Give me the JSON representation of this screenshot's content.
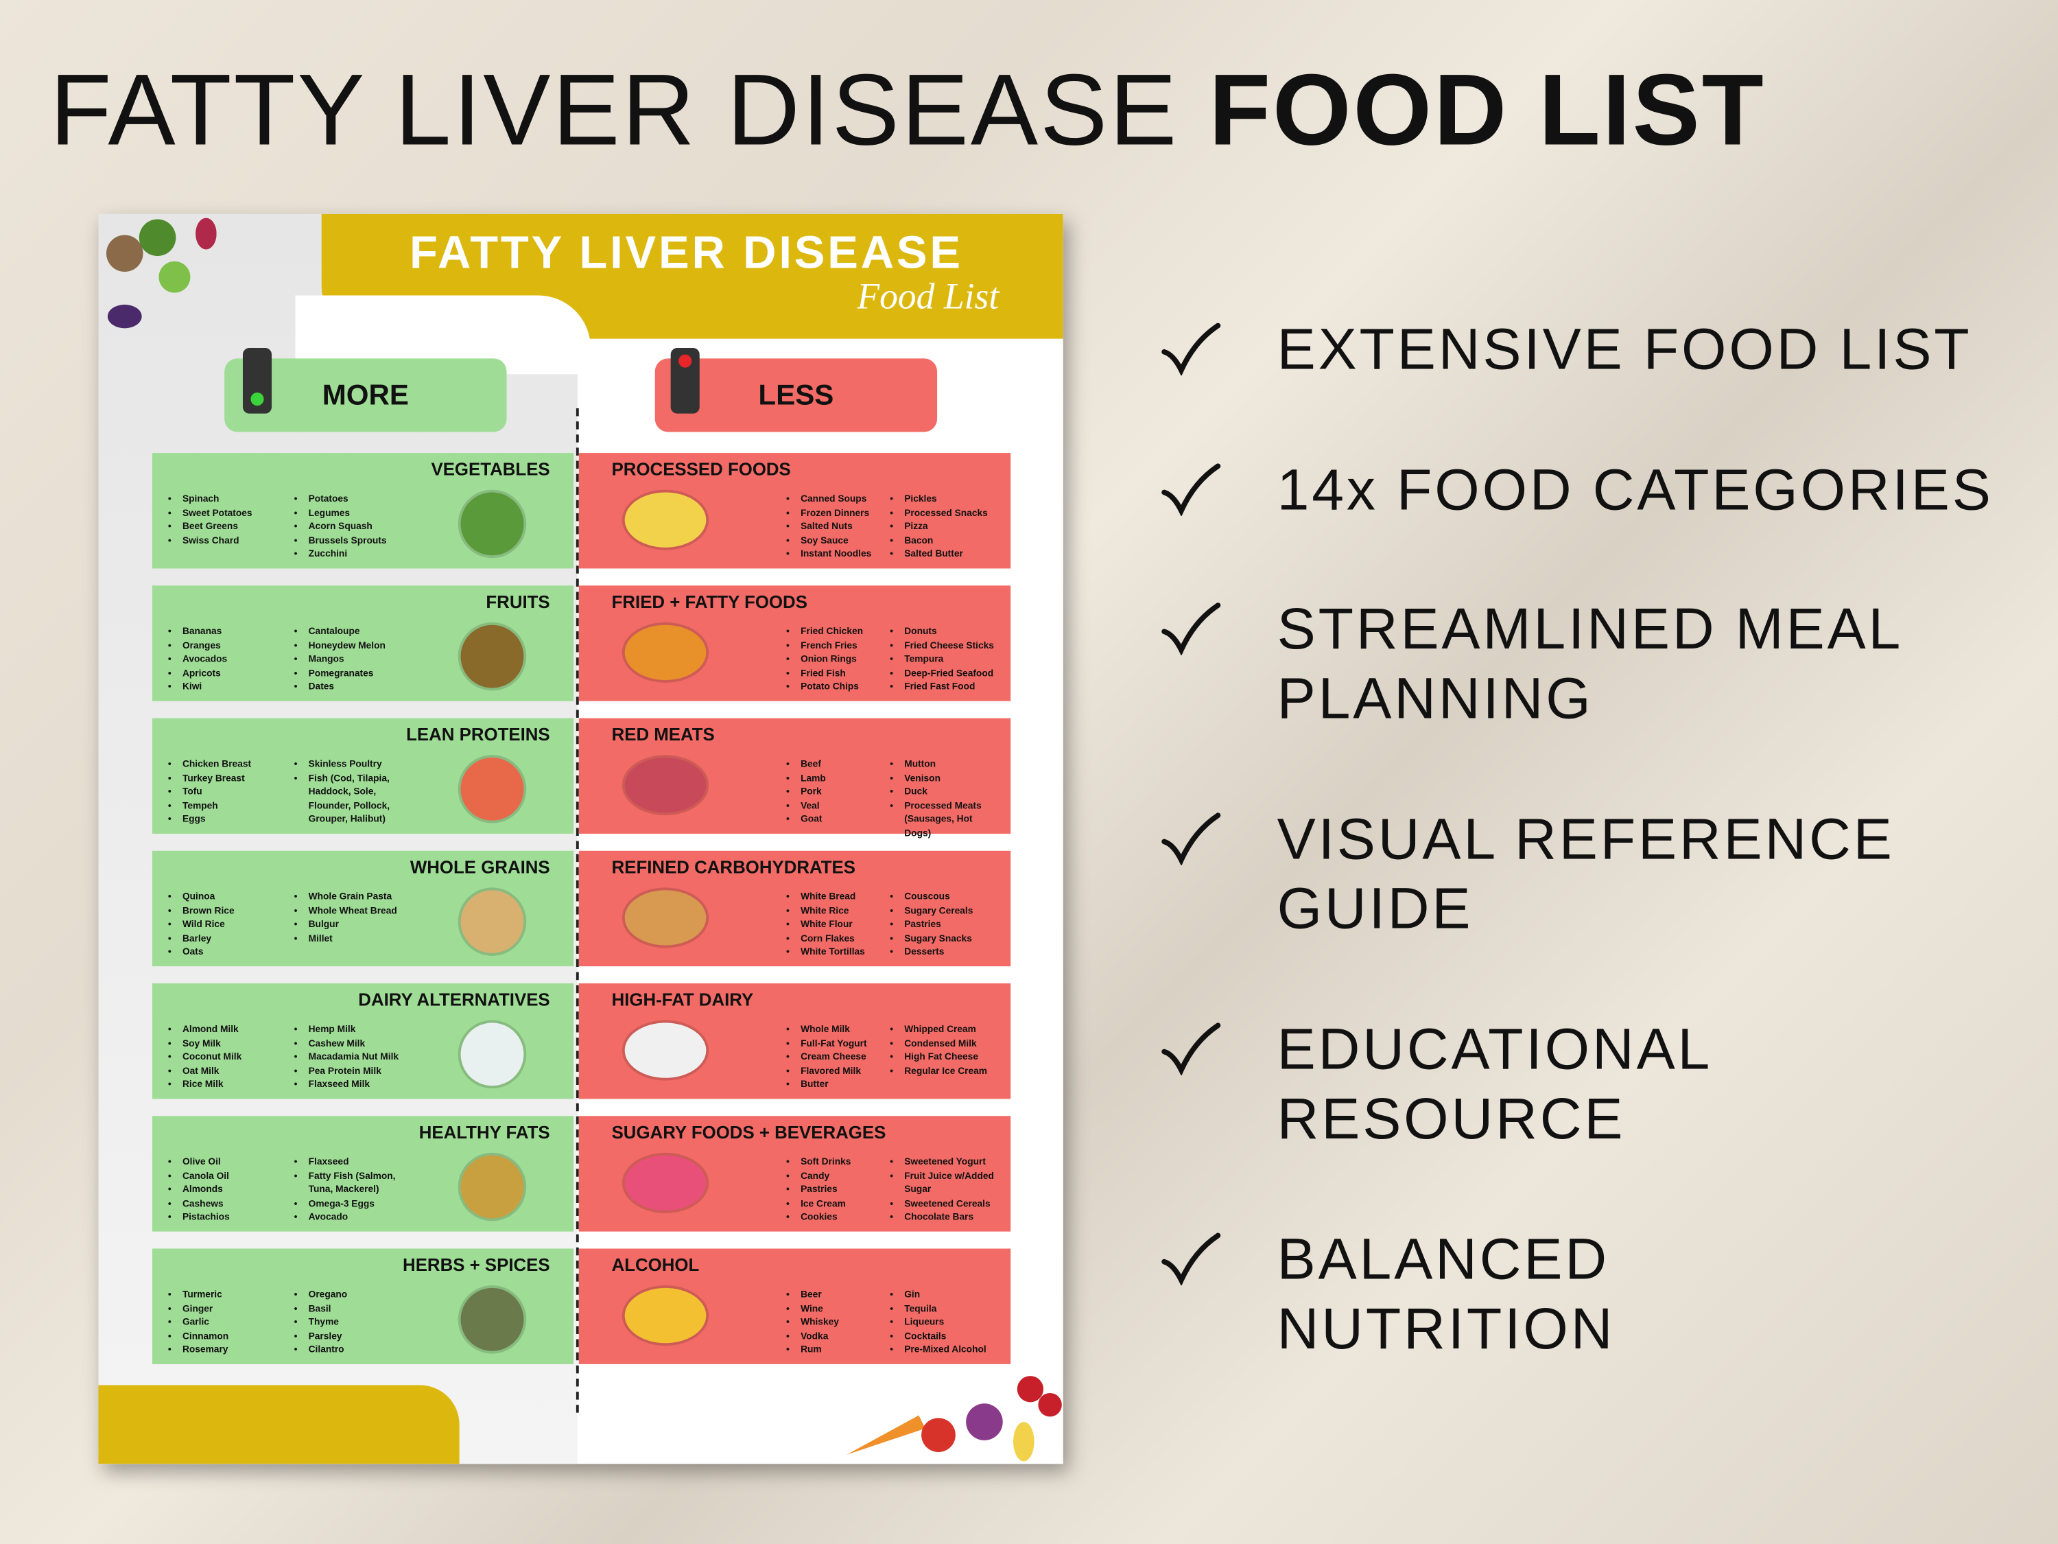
{
  "header": {
    "title_light": "FATTY LIVER DISEASE",
    "title_bold": "FOOD LIST"
  },
  "poster": {
    "title": "FATTY LIVER DISEASE",
    "subtitle": "Food List",
    "more": "MORE",
    "less": "LESS",
    "more_categories": [
      {
        "name": "VEGETABLES",
        "col1": [
          "Spinach",
          "Sweet Potatoes",
          "Beet Greens",
          "Swiss Chard"
        ],
        "col2": [
          "Potatoes",
          "Legumes",
          "Acorn Squash",
          "Brussels Sprouts",
          "Zucchini"
        ]
      },
      {
        "name": "FRUITS",
        "col1": [
          "Bananas",
          "Oranges",
          "Avocados",
          "Apricots",
          "Kiwi"
        ],
        "col2": [
          "Cantaloupe",
          "Honeydew Melon",
          "Mangos",
          "Pomegranates",
          "Dates"
        ]
      },
      {
        "name": "LEAN PROTEINS",
        "col1": [
          "Chicken Breast",
          "Turkey Breast",
          "Tofu",
          "Tempeh",
          "Eggs"
        ],
        "col2": [
          "Skinless Poultry",
          "Fish (Cod, Tilapia, Haddock, Sole, Flounder, Pollock, Grouper, Halibut)"
        ]
      },
      {
        "name": "WHOLE GRAINS",
        "col1": [
          "Quinoa",
          "Brown Rice",
          "Wild Rice",
          "Barley",
          "Oats"
        ],
        "col2": [
          "Whole Grain Pasta",
          "Whole Wheat Bread",
          "Bulgur",
          "Millet"
        ]
      },
      {
        "name": "DAIRY ALTERNATIVES",
        "col1": [
          "Almond Milk",
          "Soy Milk",
          "Coconut Milk",
          "Oat Milk",
          "Rice Milk"
        ],
        "col2": [
          "Hemp Milk",
          "Cashew Milk",
          "Macadamia Nut Milk",
          "Pea Protein Milk",
          "Flaxseed Milk"
        ]
      },
      {
        "name": "HEALTHY FATS",
        "col1": [
          "Olive Oil",
          "Canola Oil",
          "Almonds",
          "Cashews",
          "Pistachios"
        ],
        "col2": [
          "Flaxseed",
          "Fatty Fish (Salmon, Tuna, Mackerel)",
          "Omega-3 Eggs",
          "Avocado"
        ]
      },
      {
        "name": "HERBS + SPICES",
        "col1": [
          "Turmeric",
          "Ginger",
          "Garlic",
          "Cinnamon",
          "Rosemary"
        ],
        "col2": [
          "Oregano",
          "Basil",
          "Thyme",
          "Parsley",
          "Cilantro"
        ]
      }
    ],
    "less_categories": [
      {
        "name": "PROCESSED FOODS",
        "col1": [
          "Canned Soups",
          "Frozen Dinners",
          "Salted Nuts",
          "Soy Sauce",
          "Instant Noodles"
        ],
        "col2": [
          "Pickles",
          "Processed Snacks",
          "Pizza",
          "Bacon",
          "Salted Butter"
        ]
      },
      {
        "name": "FRIED + FATTY FOODS",
        "col1": [
          "Fried Chicken",
          "French Fries",
          "Onion Rings",
          "Fried Fish",
          "Potato Chips"
        ],
        "col2": [
          "Donuts",
          "Fried Cheese Sticks",
          "Tempura",
          "Deep-Fried Seafood",
          "Fried Fast Food"
        ]
      },
      {
        "name": "RED MEATS",
        "col1": [
          "Beef",
          "Lamb",
          "Pork",
          "Veal",
          "Goat"
        ],
        "col2": [
          "Mutton",
          "Venison",
          "Duck",
          "Processed Meats (Sausages, Hot Dogs)"
        ]
      },
      {
        "name": "REFINED CARBOHYDRATES",
        "col1": [
          "White Bread",
          "White Rice",
          "White Flour",
          "Corn Flakes",
          "White Tortillas"
        ],
        "col2": [
          "Couscous",
          "Sugary Cereals",
          "Pastries",
          "Sugary Snacks",
          "Desserts"
        ]
      },
      {
        "name": "HIGH-FAT DAIRY",
        "col1": [
          "Whole Milk",
          "Full-Fat Yogurt",
          "Cream Cheese",
          "Flavored Milk",
          "Butter"
        ],
        "col2": [
          "Whipped Cream",
          "Condensed Milk",
          "High Fat Cheese",
          "Regular Ice Cream"
        ]
      },
      {
        "name": "SUGARY FOODS + BEVERAGES",
        "col1": [
          "Soft Drinks",
          "Candy",
          "Pastries",
          "Ice Cream",
          "Cookies"
        ],
        "col2": [
          "Sweetened Yogurt",
          "Fruit Juice w/Added Sugar",
          "Sweetened Cereals",
          "Chocolate Bars"
        ]
      },
      {
        "name": "ALCOHOL",
        "col1": [
          "Beer",
          "Wine",
          "Whiskey",
          "Vodka",
          "Rum"
        ],
        "col2": [
          "Gin",
          "Tequila",
          "Liqueurs",
          "Cocktails",
          "Pre-Mixed Alcohol"
        ]
      }
    ]
  },
  "features": [
    [
      "EXTENSIVE FOOD LIST"
    ],
    [
      "14x FOOD CATEGORIES"
    ],
    [
      "STREAMLINED MEAL",
      "PLANNING"
    ],
    [
      "VISUAL REFERENCE",
      "GUIDE"
    ],
    [
      "EDUCATIONAL",
      "RESOURCE"
    ],
    [
      "BALANCED",
      "NUTRITION"
    ]
  ]
}
